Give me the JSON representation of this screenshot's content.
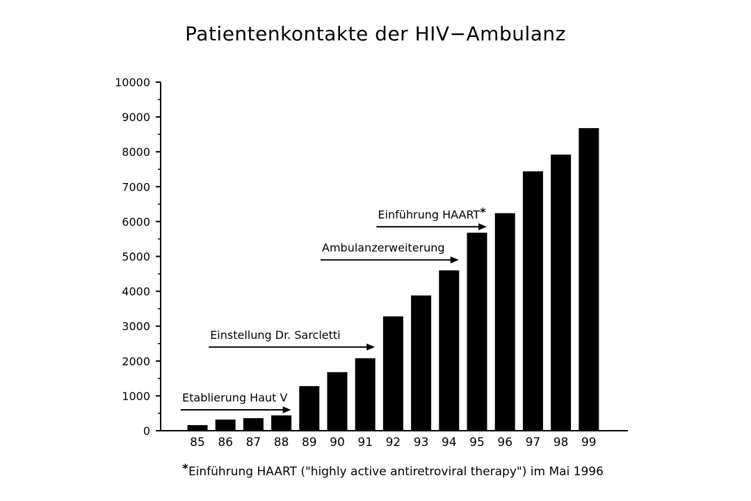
{
  "chart_data": {
    "type": "bar",
    "title": "Patientenkontakte der HIV−Ambulanz",
    "categories": [
      "85",
      "86",
      "87",
      "88",
      "89",
      "90",
      "91",
      "92",
      "93",
      "94",
      "95",
      "96",
      "97",
      "98",
      "99"
    ],
    "values": [
      160,
      320,
      360,
      440,
      1280,
      1680,
      2080,
      3280,
      3880,
      4600,
      5680,
      6240,
      7440,
      7920,
      8680
    ],
    "ylim": [
      0,
      10000
    ],
    "yticks": [
      0,
      1000,
      2000,
      3000,
      4000,
      5000,
      6000,
      7000,
      8000,
      9000,
      10000
    ],
    "xlabel": "",
    "ylabel": "",
    "grid": false,
    "bar_color": "#000000",
    "annotations": [
      {
        "text": "Etablierung Haut V",
        "from": "85",
        "to": "88",
        "y": 600
      },
      {
        "text": "Einstellung Dr. Sarcletti",
        "from": "86",
        "to": "91",
        "y": 2400
      },
      {
        "text": "Ambulanzerweiterung",
        "from": "90",
        "to": "94",
        "y": 4900
      },
      {
        "text": "Einführung HAART",
        "marker": "*",
        "from": "92",
        "to": "95",
        "y": 5850
      }
    ],
    "footnote": {
      "marker": "*",
      "text": "Einführung HAART (\"highly active antiretroviral therapy\") im Mai 1996"
    }
  }
}
